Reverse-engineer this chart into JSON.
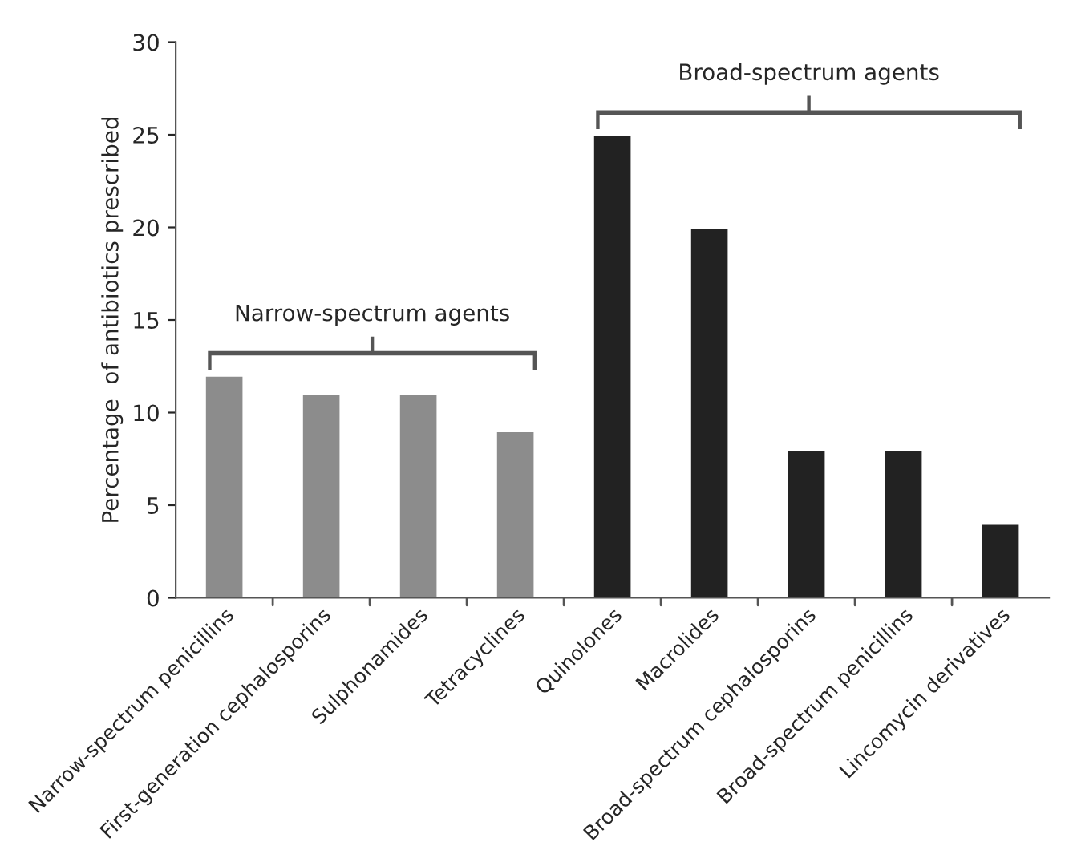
{
  "chart_data": {
    "type": "bar",
    "ylabel": "Percentage  of antibiotics prescribed",
    "categories": [
      "Narrow-spectrum penicillins",
      "First-generation cephalosporins",
      "Sulphonamides",
      "Tetracyclines",
      "Quinolones",
      "Macrolides",
      "Broad-spectrum cephalosporins",
      "Broad-spectrum penicillins",
      "Lincomycin derivatives"
    ],
    "values": [
      12,
      11,
      11,
      9,
      25,
      20,
      8,
      8,
      4
    ],
    "colors": [
      "#8c8c8c",
      "#8c8c8c",
      "#8c8c8c",
      "#8c8c8c",
      "#222222",
      "#222222",
      "#222222",
      "#222222",
      "#222222"
    ],
    "ylim": [
      0,
      30
    ],
    "yticks": [
      0,
      5,
      10,
      15,
      20,
      25,
      30
    ],
    "grid": false,
    "legend": false,
    "annotations": [
      "Narrow-spectrum agents",
      "Broad-spectrum agents"
    ]
  }
}
